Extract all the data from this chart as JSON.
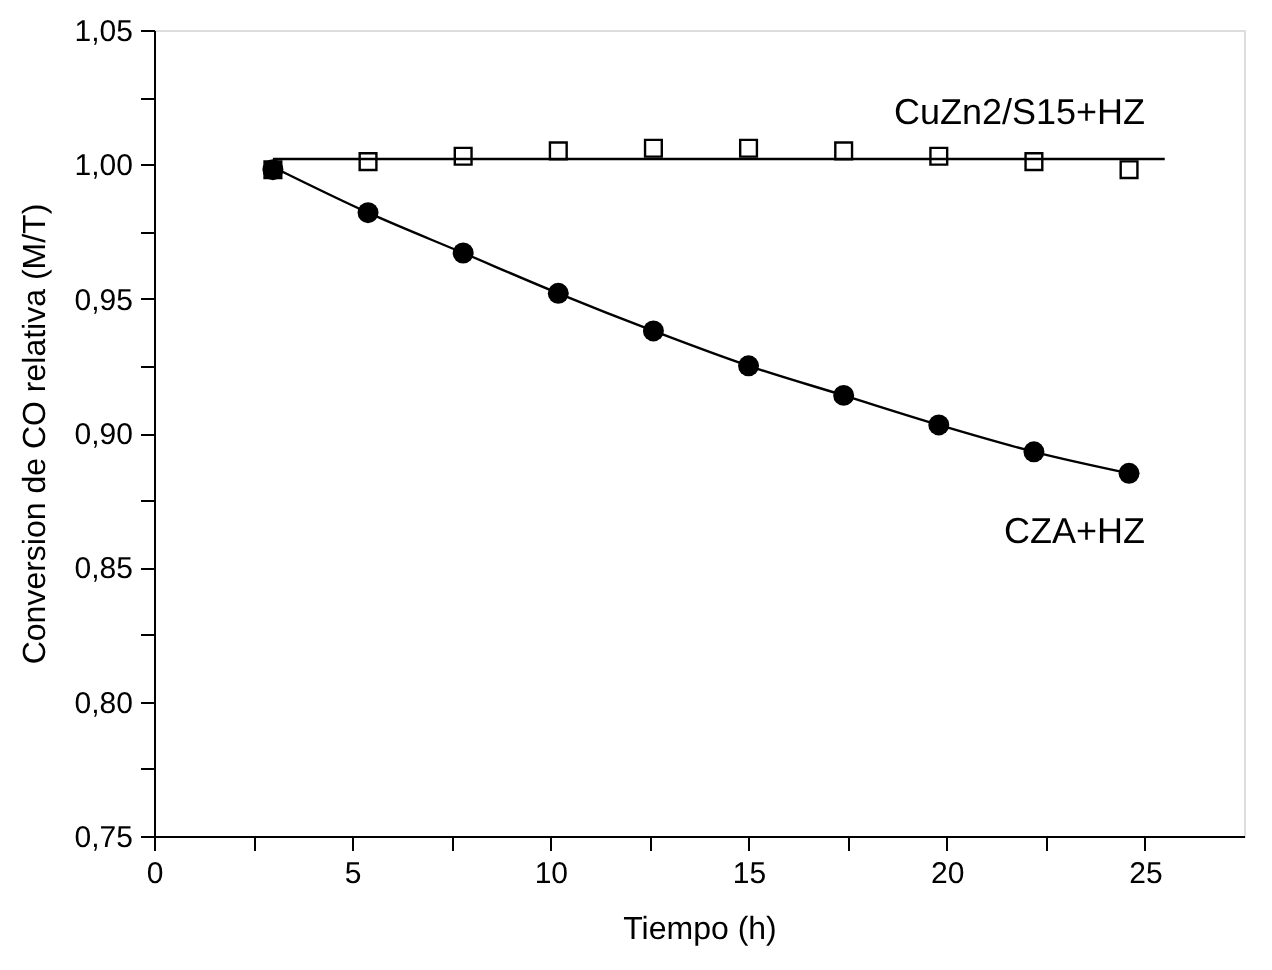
{
  "chart_data": {
    "type": "scatter",
    "xlabel": "Tiempo (h)",
    "ylabel": "Conversion de CO relativa (M/T)",
    "xlim": [
      0,
      27.5
    ],
    "ylim": [
      0.75,
      1.05
    ],
    "xticks": [
      0,
      {
        "value": 2.5,
        "label": null
      },
      5,
      {
        "value": 7.5,
        "label": null
      },
      10,
      {
        "value": 12.5,
        "label": null
      },
      15,
      {
        "value": 17.5,
        "label": null
      },
      20,
      {
        "value": 22.5,
        "label": null
      },
      25
    ],
    "yticks": [
      {
        "value": 0.75,
        "label": "0,75"
      },
      {
        "value": 0.775,
        "label": null
      },
      {
        "value": 0.8,
        "label": "0,80"
      },
      {
        "value": 0.825,
        "label": null
      },
      {
        "value": 0.85,
        "label": "0,85"
      },
      {
        "value": 0.875,
        "label": null
      },
      {
        "value": 0.9,
        "label": "0,90"
      },
      {
        "value": 0.925,
        "label": null
      },
      {
        "value": 0.95,
        "label": "0,95"
      },
      {
        "value": 0.975,
        "label": null
      },
      {
        "value": 1.0,
        "label": "1,00"
      },
      {
        "value": 1.025,
        "label": null
      },
      {
        "value": 1.05,
        "label": "1,05"
      }
    ],
    "grid": false,
    "series": [
      {
        "type": "line",
        "marker": "none",
        "color": "#000000",
        "x": [
          3.0,
          25.5
        ],
        "values": [
          1.002,
          1.002
        ]
      },
      {
        "type": "line",
        "marker": "none",
        "color": "#000000",
        "x": [
          3.0,
          5.4,
          7.8,
          10.2,
          12.6,
          15.0,
          17.4,
          19.8,
          22.2,
          24.6
        ],
        "values": [
          0.999,
          0.982,
          0.967,
          0.952,
          0.938,
          0.925,
          0.914,
          0.903,
          0.893,
          0.885
        ]
      },
      {
        "name": "CuZn2/S15+HZ",
        "marker": "square",
        "color": "#000000",
        "x": [
          3.0,
          5.4,
          7.8,
          10.2,
          12.6,
          15.0,
          17.4,
          19.8,
          22.2,
          24.6
        ],
        "values": [
          0.998,
          1.001,
          1.003,
          1.005,
          1.006,
          1.006,
          1.005,
          1.003,
          1.001,
          0.998
        ]
      },
      {
        "name": "CZA+HZ",
        "marker": "circle",
        "color": "#000000",
        "x": [
          3.0,
          5.4,
          7.8,
          10.2,
          12.6,
          15.0,
          17.4,
          19.8,
          22.2,
          24.6
        ],
        "values": [
          0.998,
          0.982,
          0.967,
          0.952,
          0.938,
          0.925,
          0.914,
          0.903,
          0.893,
          0.885
        ]
      }
    ]
  }
}
